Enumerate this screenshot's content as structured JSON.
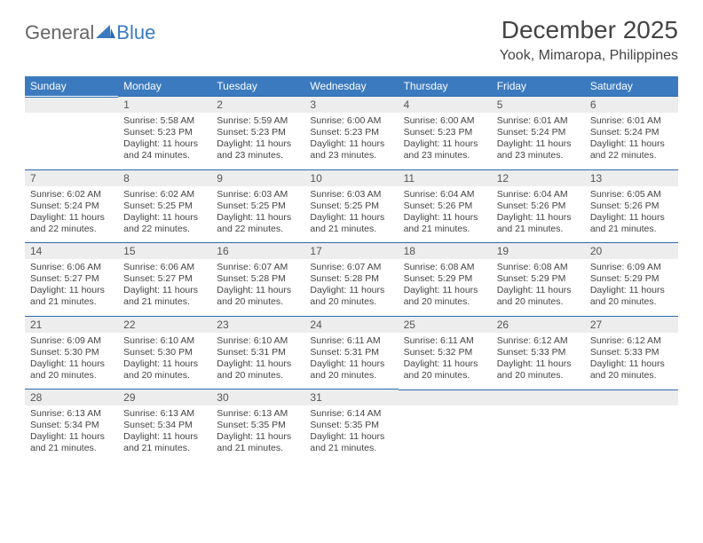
{
  "brand": {
    "part1": "General",
    "part2": "Blue"
  },
  "title": "December 2025",
  "location": "Yook, Mimaropa, Philippines",
  "colors": {
    "header_bg": "#3b7abf",
    "header_text": "#ffffff",
    "daynum_bg": "#ededed",
    "border": "#2b6aaf",
    "body_text": "#444444"
  },
  "day_headers": [
    "Sunday",
    "Monday",
    "Tuesday",
    "Wednesday",
    "Thursday",
    "Friday",
    "Saturday"
  ],
  "weeks": [
    [
      null,
      {
        "n": "1",
        "sr": "5:58 AM",
        "ss": "5:23 PM",
        "dl": "11 hours and 24 minutes."
      },
      {
        "n": "2",
        "sr": "5:59 AM",
        "ss": "5:23 PM",
        "dl": "11 hours and 23 minutes."
      },
      {
        "n": "3",
        "sr": "6:00 AM",
        "ss": "5:23 PM",
        "dl": "11 hours and 23 minutes."
      },
      {
        "n": "4",
        "sr": "6:00 AM",
        "ss": "5:23 PM",
        "dl": "11 hours and 23 minutes."
      },
      {
        "n": "5",
        "sr": "6:01 AM",
        "ss": "5:24 PM",
        "dl": "11 hours and 23 minutes."
      },
      {
        "n": "6",
        "sr": "6:01 AM",
        "ss": "5:24 PM",
        "dl": "11 hours and 22 minutes."
      }
    ],
    [
      {
        "n": "7",
        "sr": "6:02 AM",
        "ss": "5:24 PM",
        "dl": "11 hours and 22 minutes."
      },
      {
        "n": "8",
        "sr": "6:02 AM",
        "ss": "5:25 PM",
        "dl": "11 hours and 22 minutes."
      },
      {
        "n": "9",
        "sr": "6:03 AM",
        "ss": "5:25 PM",
        "dl": "11 hours and 22 minutes."
      },
      {
        "n": "10",
        "sr": "6:03 AM",
        "ss": "5:25 PM",
        "dl": "11 hours and 21 minutes."
      },
      {
        "n": "11",
        "sr": "6:04 AM",
        "ss": "5:26 PM",
        "dl": "11 hours and 21 minutes."
      },
      {
        "n": "12",
        "sr": "6:04 AM",
        "ss": "5:26 PM",
        "dl": "11 hours and 21 minutes."
      },
      {
        "n": "13",
        "sr": "6:05 AM",
        "ss": "5:26 PM",
        "dl": "11 hours and 21 minutes."
      }
    ],
    [
      {
        "n": "14",
        "sr": "6:06 AM",
        "ss": "5:27 PM",
        "dl": "11 hours and 21 minutes."
      },
      {
        "n": "15",
        "sr": "6:06 AM",
        "ss": "5:27 PM",
        "dl": "11 hours and 21 minutes."
      },
      {
        "n": "16",
        "sr": "6:07 AM",
        "ss": "5:28 PM",
        "dl": "11 hours and 20 minutes."
      },
      {
        "n": "17",
        "sr": "6:07 AM",
        "ss": "5:28 PM",
        "dl": "11 hours and 20 minutes."
      },
      {
        "n": "18",
        "sr": "6:08 AM",
        "ss": "5:29 PM",
        "dl": "11 hours and 20 minutes."
      },
      {
        "n": "19",
        "sr": "6:08 AM",
        "ss": "5:29 PM",
        "dl": "11 hours and 20 minutes."
      },
      {
        "n": "20",
        "sr": "6:09 AM",
        "ss": "5:29 PM",
        "dl": "11 hours and 20 minutes."
      }
    ],
    [
      {
        "n": "21",
        "sr": "6:09 AM",
        "ss": "5:30 PM",
        "dl": "11 hours and 20 minutes."
      },
      {
        "n": "22",
        "sr": "6:10 AM",
        "ss": "5:30 PM",
        "dl": "11 hours and 20 minutes."
      },
      {
        "n": "23",
        "sr": "6:10 AM",
        "ss": "5:31 PM",
        "dl": "11 hours and 20 minutes."
      },
      {
        "n": "24",
        "sr": "6:11 AM",
        "ss": "5:31 PM",
        "dl": "11 hours and 20 minutes."
      },
      {
        "n": "25",
        "sr": "6:11 AM",
        "ss": "5:32 PM",
        "dl": "11 hours and 20 minutes."
      },
      {
        "n": "26",
        "sr": "6:12 AM",
        "ss": "5:33 PM",
        "dl": "11 hours and 20 minutes."
      },
      {
        "n": "27",
        "sr": "6:12 AM",
        "ss": "5:33 PM",
        "dl": "11 hours and 20 minutes."
      }
    ],
    [
      {
        "n": "28",
        "sr": "6:13 AM",
        "ss": "5:34 PM",
        "dl": "11 hours and 21 minutes."
      },
      {
        "n": "29",
        "sr": "6:13 AM",
        "ss": "5:34 PM",
        "dl": "11 hours and 21 minutes."
      },
      {
        "n": "30",
        "sr": "6:13 AM",
        "ss": "5:35 PM",
        "dl": "11 hours and 21 minutes."
      },
      {
        "n": "31",
        "sr": "6:14 AM",
        "ss": "5:35 PM",
        "dl": "11 hours and 21 minutes."
      },
      null,
      null,
      null
    ]
  ],
  "labels": {
    "sunrise": "Sunrise:",
    "sunset": "Sunset:",
    "daylight": "Daylight:"
  }
}
